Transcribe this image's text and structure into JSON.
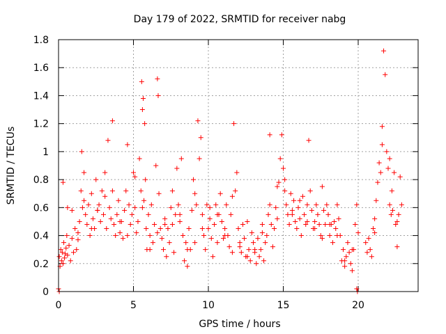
{
  "chart_data": {
    "type": "scatter",
    "title": "Day 179 of 2022, SRMTID for receiver nabg",
    "xlabel": "GPS time / hours",
    "ylabel": "SRMTID / TECUs",
    "xlim": [
      0,
      24
    ],
    "ylim": [
      0,
      1.8
    ],
    "xticks": [
      0,
      5,
      10,
      15,
      20
    ],
    "xtick_labels": [
      "0",
      "5",
      "10",
      "15",
      "20"
    ],
    "yticks": [
      0,
      0.2,
      0.4,
      0.6,
      0.8,
      1.0,
      1.2,
      1.4,
      1.6,
      1.8
    ],
    "ytick_labels": [
      "0",
      "0.2",
      "0.4",
      "0.6",
      "0.8",
      "1",
      "1.2",
      "1.4",
      "1.6",
      "1.8"
    ],
    "grid": true,
    "marker": "+",
    "marker_color": "#ff0000",
    "series": [
      {
        "name": "SRMTID",
        "x": [
          0.05,
          0.1,
          0.15,
          0.2,
          0.25,
          0.3,
          0.35,
          0.4,
          0.45,
          0.5,
          0.55,
          0.6,
          0.7,
          0.8,
          0.9,
          1.0,
          1.1,
          1.2,
          1.3,
          1.4,
          1.5,
          1.55,
          1.6,
          1.7,
          1.8,
          1.9,
          2.0,
          2.1,
          2.2,
          2.3,
          2.4,
          2.5,
          2.6,
          2.7,
          2.8,
          2.9,
          3.0,
          3.1,
          3.2,
          3.3,
          3.4,
          3.5,
          3.6,
          3.7,
          3.8,
          3.9,
          4.0,
          4.1,
          4.2,
          4.3,
          4.4,
          4.5,
          4.6,
          4.7,
          4.8,
          4.9,
          5.0,
          5.1,
          5.2,
          5.3,
          5.4,
          5.5,
          5.55,
          5.6,
          5.65,
          5.7,
          5.75,
          5.8,
          5.85,
          5.9,
          6.0,
          6.1,
          6.2,
          6.3,
          6.4,
          6.5,
          6.6,
          6.65,
          6.7,
          6.8,
          6.9,
          7.0,
          7.1,
          7.2,
          7.3,
          7.4,
          7.5,
          7.6,
          7.7,
          7.8,
          7.9,
          8.0,
          8.1,
          8.2,
          8.3,
          8.4,
          8.5,
          8.6,
          8.7,
          8.8,
          8.9,
          9.0,
          9.1,
          9.2,
          9.3,
          9.4,
          9.5,
          9.6,
          9.7,
          9.8,
          9.9,
          10.0,
          10.1,
          10.2,
          10.3,
          10.4,
          10.5,
          10.6,
          10.7,
          10.8,
          10.9,
          11.0,
          11.1,
          11.2,
          11.3,
          11.4,
          11.5,
          11.6,
          11.7,
          11.8,
          11.9,
          12.0,
          12.1,
          12.2,
          12.3,
          12.4,
          12.5,
          12.6,
          12.7,
          12.8,
          12.9,
          13.0,
          13.1,
          13.2,
          13.3,
          13.4,
          13.5,
          13.6,
          13.7,
          13.8,
          13.9,
          14.0,
          14.1,
          14.2,
          14.3,
          14.4,
          14.5,
          14.6,
          14.7,
          14.8,
          14.9,
          15.0,
          15.1,
          15.2,
          15.3,
          15.4,
          15.5,
          15.6,
          15.7,
          15.8,
          15.9,
          16.0,
          16.1,
          16.2,
          16.3,
          16.4,
          16.5,
          16.6,
          16.7,
          16.8,
          16.9,
          17.0,
          17.1,
          17.2,
          17.3,
          17.4,
          17.5,
          17.6,
          17.7,
          17.8,
          17.9,
          18.0,
          18.1,
          18.2,
          18.3,
          18.4,
          18.5,
          18.6,
          18.7,
          18.8,
          18.9,
          19.0,
          19.1,
          19.2,
          19.3,
          19.4,
          19.5,
          19.6,
          19.7,
          19.8,
          19.9,
          20.0,
          20.5,
          20.6,
          20.7,
          20.8,
          20.9,
          21.0,
          21.1,
          21.2,
          21.3,
          21.4,
          21.5,
          21.6,
          21.7,
          21.8,
          21.9,
          22.0,
          22.1,
          22.2,
          22.25,
          22.3,
          22.4,
          22.5,
          22.6,
          22.7,
          22.8,
          22.9,
          0.3,
          0.6,
          0.9,
          1.3,
          1.7,
          2.2,
          2.6,
          3.1,
          3.6,
          4.1,
          4.6,
          5.1,
          5.6,
          6.1,
          6.6,
          7.1,
          7.6,
          8.1,
          8.6,
          9.1,
          9.6,
          10.1,
          10.6,
          11.1,
          11.6,
          12.1,
          12.6,
          13.1,
          13.6,
          14.1,
          14.6,
          15.1,
          15.6,
          16.1,
          16.6,
          17.1,
          17.6,
          18.1,
          18.6,
          19.1,
          19.6,
          21.1,
          21.6,
          22.1,
          22.6,
          0.0,
          0.05,
          19.9,
          19.95
        ],
        "y": [
          0.25,
          0.18,
          0.3,
          0.22,
          0.28,
          0.2,
          0.35,
          0.24,
          0.27,
          0.31,
          0.4,
          0.26,
          0.33,
          0.22,
          0.38,
          0.28,
          0.45,
          0.3,
          0.37,
          0.5,
          0.72,
          1.0,
          0.6,
          0.85,
          0.55,
          0.48,
          0.62,
          0.4,
          0.7,
          0.52,
          0.45,
          0.8,
          0.58,
          0.62,
          0.5,
          0.72,
          0.55,
          0.68,
          0.45,
          1.08,
          0.6,
          0.52,
          1.22,
          0.48,
          0.4,
          0.55,
          0.65,
          0.42,
          0.5,
          0.38,
          0.58,
          0.72,
          1.05,
          0.62,
          0.48,
          0.55,
          0.85,
          0.6,
          0.42,
          0.5,
          0.95,
          0.72,
          1.5,
          1.3,
          1.38,
          0.65,
          1.2,
          0.8,
          0.45,
          0.3,
          0.55,
          0.4,
          0.62,
          0.35,
          0.48,
          0.9,
          1.52,
          1.4,
          0.7,
          0.45,
          0.38,
          0.3,
          0.52,
          0.25,
          0.45,
          0.35,
          0.6,
          0.48,
          0.28,
          0.55,
          0.88,
          0.62,
          0.5,
          0.95,
          0.4,
          0.22,
          0.35,
          0.18,
          0.45,
          0.3,
          0.58,
          0.8,
          0.7,
          0.62,
          1.22,
          0.95,
          1.1,
          0.55,
          0.4,
          0.3,
          0.62,
          0.45,
          0.52,
          0.38,
          0.25,
          0.48,
          0.62,
          0.35,
          0.55,
          0.7,
          0.5,
          0.38,
          0.45,
          0.62,
          0.4,
          0.32,
          0.55,
          0.68,
          1.2,
          0.72,
          0.85,
          0.45,
          0.32,
          0.28,
          0.48,
          0.38,
          0.25,
          0.5,
          0.3,
          0.22,
          0.42,
          0.35,
          0.28,
          0.2,
          0.38,
          0.25,
          0.3,
          0.48,
          0.22,
          0.35,
          0.4,
          0.55,
          1.12,
          0.48,
          0.32,
          0.45,
          0.6,
          0.52,
          0.78,
          0.95,
          1.12,
          0.88,
          0.72,
          0.62,
          0.55,
          0.48,
          0.7,
          0.58,
          0.65,
          0.5,
          0.45,
          0.6,
          0.52,
          0.4,
          0.68,
          0.55,
          0.48,
          0.62,
          1.08,
          0.72,
          0.58,
          0.45,
          0.5,
          0.62,
          0.55,
          0.48,
          0.4,
          0.75,
          0.58,
          0.48,
          0.62,
          0.55,
          0.4,
          0.48,
          0.35,
          0.5,
          0.45,
          0.62,
          0.52,
          0.4,
          0.22,
          0.3,
          0.18,
          0.25,
          0.35,
          0.28,
          0.2,
          0.15,
          0.3,
          0.48,
          0.62,
          0.42,
          0.35,
          0.28,
          0.38,
          0.3,
          0.25,
          0.45,
          0.52,
          0.65,
          0.78,
          0.92,
          0.85,
          1.18,
          1.72,
          1.55,
          1.0,
          0.88,
          0.62,
          0.55,
          0.72,
          0.58,
          0.85,
          0.48,
          0.32,
          0.55,
          0.82,
          0.62,
          0.78,
          0.6,
          0.58,
          0.42,
          0.65,
          0.45,
          0.58,
          0.85,
          0.72,
          0.5,
          0.4,
          0.82,
          0.6,
          0.3,
          0.42,
          0.48,
          0.72,
          0.55,
          0.3,
          0.35,
          0.45,
          0.6,
          0.55,
          0.4,
          0.28,
          0.35,
          0.25,
          0.3,
          0.42,
          0.62,
          0.75,
          0.8,
          0.55,
          0.65,
          0.5,
          0.45,
          0.38,
          0.48,
          0.4,
          0.22,
          0.3,
          0.42,
          1.05,
          0.95,
          0.5,
          0.02,
          0.0,
          0.02,
          0.0
        ]
      }
    ]
  }
}
